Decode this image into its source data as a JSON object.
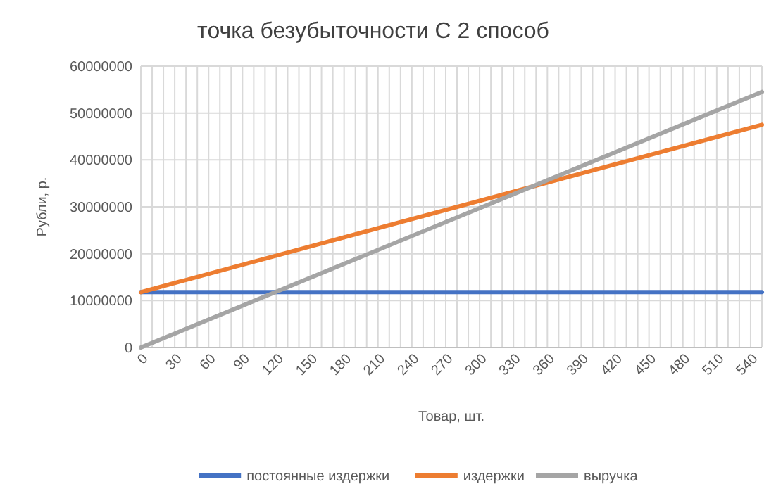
{
  "chart_data": {
    "type": "line",
    "title": "точка безубыточности С 2 способ",
    "xlabel": "Товар, шт.",
    "ylabel": "Рубли, р.",
    "x": [
      0,
      550
    ],
    "series": [
      {
        "name": "постоянные издержки",
        "color": "#4472c4",
        "values": [
          11800000,
          11800000
        ]
      },
      {
        "name": "издержки",
        "color": "#ed7d31",
        "values": [
          11800000,
          47500000
        ]
      },
      {
        "name": "выручка",
        "color": "#a5a5a5",
        "values": [
          0,
          54500000
        ]
      }
    ],
    "xlim": [
      0,
      550
    ],
    "xticks": [
      0,
      {
        "value": 10,
        "label": null
      },
      {
        "value": 20,
        "label": null
      },
      30,
      {
        "value": 40,
        "label": null
      },
      {
        "value": 50,
        "label": null
      },
      60,
      {
        "value": 70,
        "label": null
      },
      {
        "value": 80,
        "label": null
      },
      90,
      {
        "value": 100,
        "label": null
      },
      {
        "value": 110,
        "label": null
      },
      120,
      {
        "value": 130,
        "label": null
      },
      {
        "value": 140,
        "label": null
      },
      150,
      {
        "value": 160,
        "label": null
      },
      {
        "value": 170,
        "label": null
      },
      180,
      {
        "value": 190,
        "label": null
      },
      {
        "value": 200,
        "label": null
      },
      210,
      {
        "value": 220,
        "label": null
      },
      {
        "value": 230,
        "label": null
      },
      240,
      {
        "value": 250,
        "label": null
      },
      {
        "value": 260,
        "label": null
      },
      270,
      {
        "value": 280,
        "label": null
      },
      {
        "value": 290,
        "label": null
      },
      300,
      {
        "value": 310,
        "label": null
      },
      {
        "value": 320,
        "label": null
      },
      330,
      {
        "value": 340,
        "label": null
      },
      {
        "value": 350,
        "label": null
      },
      360,
      {
        "value": 370,
        "label": null
      },
      {
        "value": 380,
        "label": null
      },
      390,
      {
        "value": 400,
        "label": null
      },
      {
        "value": 410,
        "label": null
      },
      420,
      {
        "value": 430,
        "label": null
      },
      {
        "value": 440,
        "label": null
      },
      450,
      {
        "value": 460,
        "label": null
      },
      {
        "value": 470,
        "label": null
      },
      480,
      {
        "value": 490,
        "label": null
      },
      {
        "value": 500,
        "label": null
      },
      510,
      {
        "value": 520,
        "label": null
      },
      {
        "value": 530,
        "label": null
      },
      540,
      {
        "value": 550,
        "label": null
      }
    ],
    "ylim": [
      0,
      60000000
    ],
    "yticks": [
      0,
      10000000,
      20000000,
      30000000,
      40000000,
      50000000,
      60000000
    ],
    "grid": true,
    "legend": "bottom",
    "marker": "none",
    "line_style": "solid"
  }
}
